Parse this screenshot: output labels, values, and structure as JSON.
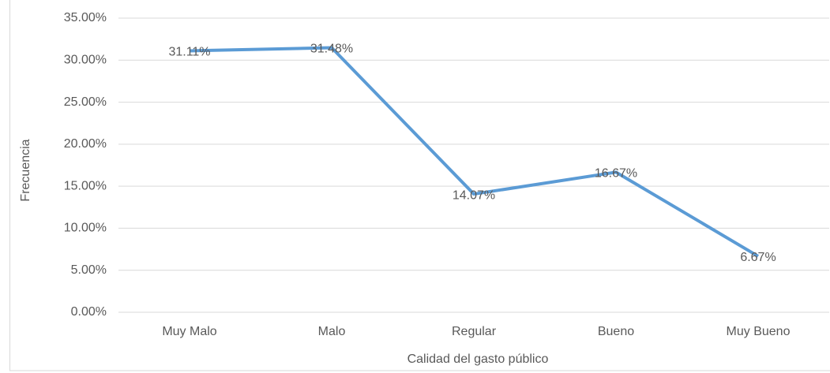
{
  "chart_data": {
    "type": "line",
    "x_label": "Calidad del gasto público",
    "y_label": "Frecuencia",
    "categories": [
      "Muy Malo",
      "Malo",
      "Regular",
      "Bueno",
      "Muy Bueno"
    ],
    "series": [
      {
        "name": "Frecuencia",
        "color": "#5b9bd5",
        "values": [
          31.11,
          31.48,
          14.07,
          16.67,
          6.67
        ],
        "value_labels": [
          "31.11%",
          "31.48%",
          "14.07%",
          "16.67%",
          "6.67%"
        ]
      }
    ],
    "ylim": [
      0,
      35
    ],
    "yticks": [
      {
        "value": 0,
        "label": "0.00%"
      },
      {
        "value": 5,
        "label": "5.00%"
      },
      {
        "value": 10,
        "label": "10.00%"
      },
      {
        "value": 15,
        "label": "15.00%"
      },
      {
        "value": 20,
        "label": "20.00%"
      },
      {
        "value": 25,
        "label": "25.00%"
      },
      {
        "value": 30,
        "label": "30.00%"
      },
      {
        "value": 35,
        "label": "35.00%"
      }
    ],
    "grid": true
  }
}
